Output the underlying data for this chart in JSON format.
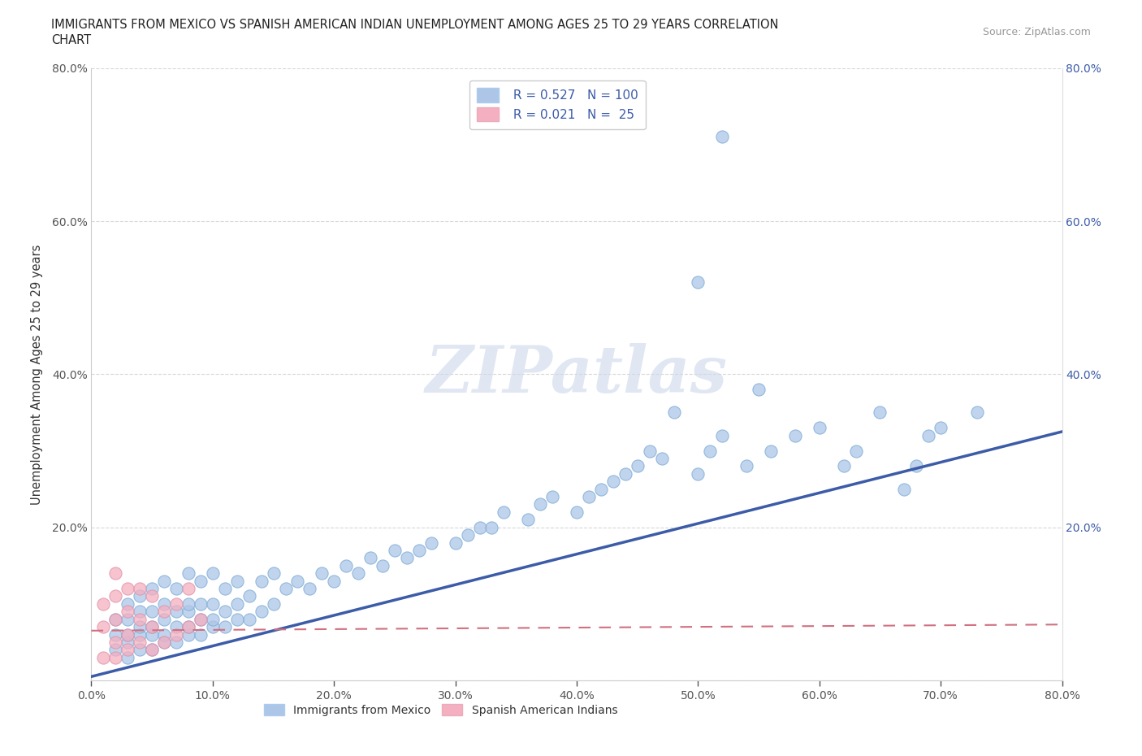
{
  "title_line1": "IMMIGRANTS FROM MEXICO VS SPANISH AMERICAN INDIAN UNEMPLOYMENT AMONG AGES 25 TO 29 YEARS CORRELATION",
  "title_line2": "CHART",
  "source": "Source: ZipAtlas.com",
  "ylabel": "Unemployment Among Ages 25 to 29 years",
  "xlim": [
    0.0,
    0.8
  ],
  "ylim": [
    0.0,
    0.8
  ],
  "xtick_vals": [
    0.0,
    0.1,
    0.2,
    0.3,
    0.4,
    0.5,
    0.6,
    0.7,
    0.8
  ],
  "ytick_vals": [
    0.0,
    0.2,
    0.4,
    0.6,
    0.8
  ],
  "right_ytick_vals": [
    0.2,
    0.4,
    0.6,
    0.8
  ],
  "R_mexico": 0.527,
  "N_mexico": 100,
  "R_indian": 0.021,
  "N_indian": 25,
  "color_mexico": "#adc6e8",
  "color_indian": "#f4afc0",
  "line_color_mexico": "#3c5ca8",
  "line_color_indian": "#e07080",
  "watermark": "ZIPatlas",
  "grid_color": "#d8d8d8",
  "mexico_x": [
    0.02,
    0.02,
    0.02,
    0.03,
    0.03,
    0.03,
    0.03,
    0.03,
    0.04,
    0.04,
    0.04,
    0.04,
    0.04,
    0.05,
    0.05,
    0.05,
    0.05,
    0.05,
    0.06,
    0.06,
    0.06,
    0.06,
    0.06,
    0.07,
    0.07,
    0.07,
    0.07,
    0.08,
    0.08,
    0.08,
    0.08,
    0.08,
    0.09,
    0.09,
    0.09,
    0.09,
    0.1,
    0.1,
    0.1,
    0.1,
    0.11,
    0.11,
    0.11,
    0.12,
    0.12,
    0.12,
    0.13,
    0.13,
    0.14,
    0.14,
    0.15,
    0.15,
    0.16,
    0.17,
    0.18,
    0.19,
    0.2,
    0.21,
    0.22,
    0.23,
    0.24,
    0.25,
    0.26,
    0.27,
    0.28,
    0.3,
    0.31,
    0.32,
    0.33,
    0.34,
    0.36,
    0.37,
    0.38,
    0.4,
    0.41,
    0.42,
    0.43,
    0.44,
    0.45,
    0.46,
    0.47,
    0.48,
    0.5,
    0.51,
    0.52,
    0.54,
    0.55,
    0.56,
    0.58,
    0.6,
    0.62,
    0.63,
    0.65,
    0.67,
    0.68,
    0.69,
    0.5,
    0.52,
    0.7,
    0.73
  ],
  "mexico_y": [
    0.04,
    0.06,
    0.08,
    0.03,
    0.05,
    0.06,
    0.08,
    0.1,
    0.04,
    0.06,
    0.07,
    0.09,
    0.11,
    0.04,
    0.06,
    0.07,
    0.09,
    0.12,
    0.05,
    0.06,
    0.08,
    0.1,
    0.13,
    0.05,
    0.07,
    0.09,
    0.12,
    0.06,
    0.07,
    0.09,
    0.1,
    0.14,
    0.06,
    0.08,
    0.1,
    0.13,
    0.07,
    0.08,
    0.1,
    0.14,
    0.07,
    0.09,
    0.12,
    0.08,
    0.1,
    0.13,
    0.08,
    0.11,
    0.09,
    0.13,
    0.1,
    0.14,
    0.12,
    0.13,
    0.12,
    0.14,
    0.13,
    0.15,
    0.14,
    0.16,
    0.15,
    0.17,
    0.16,
    0.17,
    0.18,
    0.18,
    0.19,
    0.2,
    0.2,
    0.22,
    0.21,
    0.23,
    0.24,
    0.22,
    0.24,
    0.25,
    0.26,
    0.27,
    0.28,
    0.3,
    0.29,
    0.35,
    0.27,
    0.3,
    0.32,
    0.28,
    0.38,
    0.3,
    0.32,
    0.33,
    0.28,
    0.3,
    0.35,
    0.25,
    0.28,
    0.32,
    0.52,
    0.71,
    0.33,
    0.35
  ],
  "indian_x": [
    0.01,
    0.01,
    0.01,
    0.02,
    0.02,
    0.02,
    0.02,
    0.02,
    0.03,
    0.03,
    0.03,
    0.03,
    0.04,
    0.04,
    0.04,
    0.05,
    0.05,
    0.05,
    0.06,
    0.06,
    0.07,
    0.07,
    0.08,
    0.08,
    0.09
  ],
  "indian_y": [
    0.03,
    0.07,
    0.1,
    0.03,
    0.05,
    0.08,
    0.11,
    0.14,
    0.04,
    0.06,
    0.09,
    0.12,
    0.05,
    0.08,
    0.12,
    0.04,
    0.07,
    0.11,
    0.05,
    0.09,
    0.06,
    0.1,
    0.07,
    0.12,
    0.08
  ]
}
